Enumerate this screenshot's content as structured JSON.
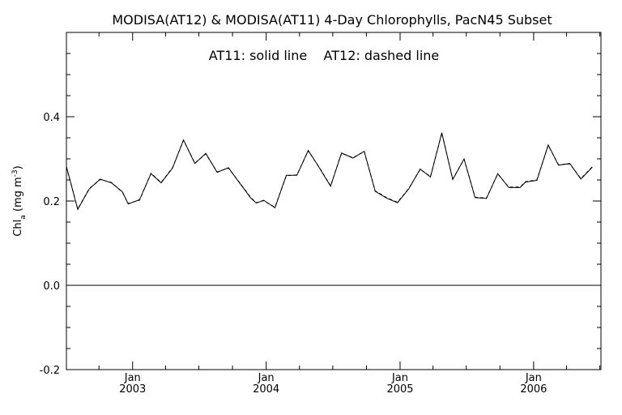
{
  "chart_data": {
    "type": "line",
    "title": "MODISA(AT12) & MODISA(AT11) 4-Day Chlorophylls, PacN45 Subset",
    "annotation": "AT11: solid line    AT12: dashed line",
    "ylabel": "Chl",
    "ylabel_sub": "a",
    "ylabel_units": " (mg m",
    "ylabel_sup": "-3",
    "ylabel_close": ")",
    "ylim": [
      -0.2,
      0.6
    ],
    "yticks": [
      {
        "value": -0.2,
        "label": "-0.2"
      },
      {
        "value": 0.0,
        "label": "0.0"
      },
      {
        "value": 0.2,
        "label": "0.2"
      },
      {
        "value": 0.4,
        "label": "0.4"
      }
    ],
    "xlim": [
      "2002-07-04",
      "2006-07-04"
    ],
    "xticks": [
      {
        "date": "2003-01-01",
        "month": "Jan",
        "year": "2003"
      },
      {
        "date": "2004-01-01",
        "month": "Jan",
        "year": "2004"
      },
      {
        "date": "2005-01-01",
        "month": "Jan",
        "year": "2005"
      },
      {
        "date": "2006-01-01",
        "month": "Jan",
        "year": "2006"
      }
    ],
    "reference_line": 0.0,
    "series": [
      {
        "name": "AT11",
        "style": "solid",
        "color": "#000000",
        "points": [
          [
            "2002-07-04",
            0.282
          ],
          [
            "2002-08-04",
            0.18
          ],
          [
            "2002-09-04",
            0.228
          ],
          [
            "2002-10-04",
            0.252
          ],
          [
            "2002-11-04",
            0.243
          ],
          [
            "2002-12-04",
            0.222
          ],
          [
            "2002-12-20",
            0.193
          ],
          [
            "2003-01-20",
            0.203
          ],
          [
            "2003-02-20",
            0.265
          ],
          [
            "2003-03-20",
            0.243
          ],
          [
            "2003-04-20",
            0.278
          ],
          [
            "2003-05-20",
            0.345
          ],
          [
            "2003-06-20",
            0.289
          ],
          [
            "2003-07-20",
            0.313
          ],
          [
            "2003-08-20",
            0.268
          ],
          [
            "2003-09-20",
            0.279
          ],
          [
            "2003-10-20",
            0.243
          ],
          [
            "2003-11-20",
            0.207
          ],
          [
            "2003-12-05",
            0.195
          ],
          [
            "2003-12-25",
            0.202
          ],
          [
            "2004-01-25",
            0.184
          ],
          [
            "2004-02-25",
            0.261
          ],
          [
            "2004-03-25",
            0.261
          ],
          [
            "2004-04-25",
            0.32
          ],
          [
            "2004-05-25",
            0.279
          ],
          [
            "2004-06-25",
            0.235
          ],
          [
            "2004-07-25",
            0.314
          ],
          [
            "2004-08-25",
            0.302
          ],
          [
            "2004-09-25",
            0.318
          ],
          [
            "2004-10-25",
            0.223
          ],
          [
            "2004-11-25",
            0.207
          ],
          [
            "2004-12-25",
            0.196
          ],
          [
            "2005-01-25",
            0.229
          ],
          [
            "2005-02-25",
            0.276
          ],
          [
            "2005-03-25",
            0.257
          ],
          [
            "2005-04-25",
            0.362
          ],
          [
            "2005-05-25",
            0.251
          ],
          [
            "2005-06-25",
            0.3
          ],
          [
            "2005-07-25",
            0.208
          ],
          [
            "2005-08-25",
            0.206
          ],
          [
            "2005-09-25",
            0.265
          ],
          [
            "2005-10-25",
            0.232
          ],
          [
            "2005-11-25",
            0.232
          ],
          [
            "2005-12-10",
            0.245
          ],
          [
            "2006-01-10",
            0.249
          ],
          [
            "2006-02-10",
            0.333
          ],
          [
            "2006-03-10",
            0.285
          ],
          [
            "2006-04-10",
            0.289
          ],
          [
            "2006-05-10",
            0.252
          ],
          [
            "2006-06-10",
            0.28
          ]
        ]
      },
      {
        "name": "AT12",
        "style": "dashed",
        "color": "#000000",
        "points": [
          [
            "2002-07-04",
            0.281
          ],
          [
            "2002-08-04",
            0.181
          ],
          [
            "2002-09-04",
            0.229
          ],
          [
            "2002-10-04",
            0.251
          ],
          [
            "2002-11-04",
            0.244
          ],
          [
            "2002-12-04",
            0.221
          ],
          [
            "2002-12-20",
            0.194
          ],
          [
            "2003-01-20",
            0.202
          ],
          [
            "2003-02-20",
            0.266
          ],
          [
            "2003-03-20",
            0.244
          ],
          [
            "2003-04-20",
            0.279
          ],
          [
            "2003-05-20",
            0.344
          ],
          [
            "2003-06-20",
            0.29
          ],
          [
            "2003-07-20",
            0.312
          ],
          [
            "2003-08-20",
            0.269
          ],
          [
            "2003-09-20",
            0.278
          ],
          [
            "2003-10-20",
            0.244
          ],
          [
            "2003-11-20",
            0.208
          ],
          [
            "2003-12-05",
            0.196
          ],
          [
            "2003-12-25",
            0.201
          ],
          [
            "2004-01-25",
            0.185
          ],
          [
            "2004-02-25",
            0.26
          ],
          [
            "2004-03-25",
            0.262
          ],
          [
            "2004-04-25",
            0.319
          ],
          [
            "2004-05-25",
            0.28
          ],
          [
            "2004-06-25",
            0.236
          ],
          [
            "2004-07-25",
            0.313
          ],
          [
            "2004-08-25",
            0.303
          ],
          [
            "2004-09-25",
            0.317
          ],
          [
            "2004-10-25",
            0.224
          ],
          [
            "2004-11-25",
            0.208
          ],
          [
            "2004-12-25",
            0.197
          ],
          [
            "2005-01-25",
            0.23
          ],
          [
            "2005-02-25",
            0.275
          ],
          [
            "2005-03-25",
            0.258
          ],
          [
            "2005-04-25",
            0.361
          ],
          [
            "2005-05-25",
            0.252
          ],
          [
            "2005-06-25",
            0.299
          ],
          [
            "2005-07-25",
            0.209
          ],
          [
            "2005-08-25",
            0.207
          ],
          [
            "2005-09-25",
            0.264
          ],
          [
            "2005-10-25",
            0.233
          ],
          [
            "2005-11-25",
            0.233
          ],
          [
            "2005-12-10",
            0.246
          ],
          [
            "2006-01-10",
            0.25
          ],
          [
            "2006-02-10",
            0.332
          ],
          [
            "2006-03-10",
            0.286
          ],
          [
            "2006-04-10",
            0.288
          ],
          [
            "2006-05-10",
            0.253
          ],
          [
            "2006-06-10",
            0.281
          ]
        ]
      }
    ]
  }
}
